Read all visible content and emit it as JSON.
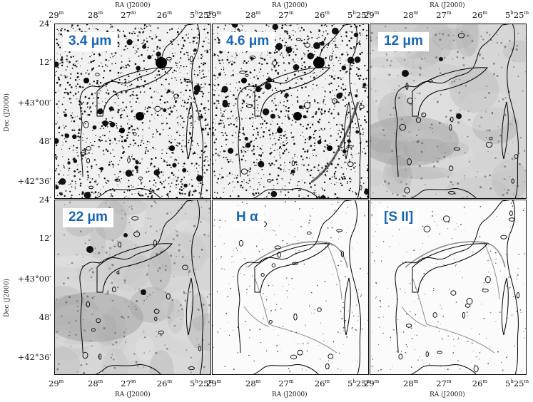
{
  "figure": {
    "top_axis_title": "RA (J2000)",
    "bottom_axis_title": "RA (J2000)",
    "y_axis_title": "Dec (J2000)",
    "ra_ticks": [
      "29",
      "28",
      "27",
      "26",
      "5h25"
    ],
    "dec_ticks": [
      "24′",
      "12′",
      "+43°00′",
      "48′",
      "+42°36′"
    ],
    "panels": [
      {
        "label": "3.4 μm",
        "style": "stars-dense"
      },
      {
        "label": "4.6 μm",
        "style": "stars-dense"
      },
      {
        "label": "12 μm",
        "style": "diffuse-gray"
      },
      {
        "label": "22 μm",
        "style": "diffuse-gray"
      },
      {
        "label": "H α",
        "style": "filaments-light"
      },
      {
        "label": "[S II]",
        "style": "filaments-light"
      }
    ]
  }
}
